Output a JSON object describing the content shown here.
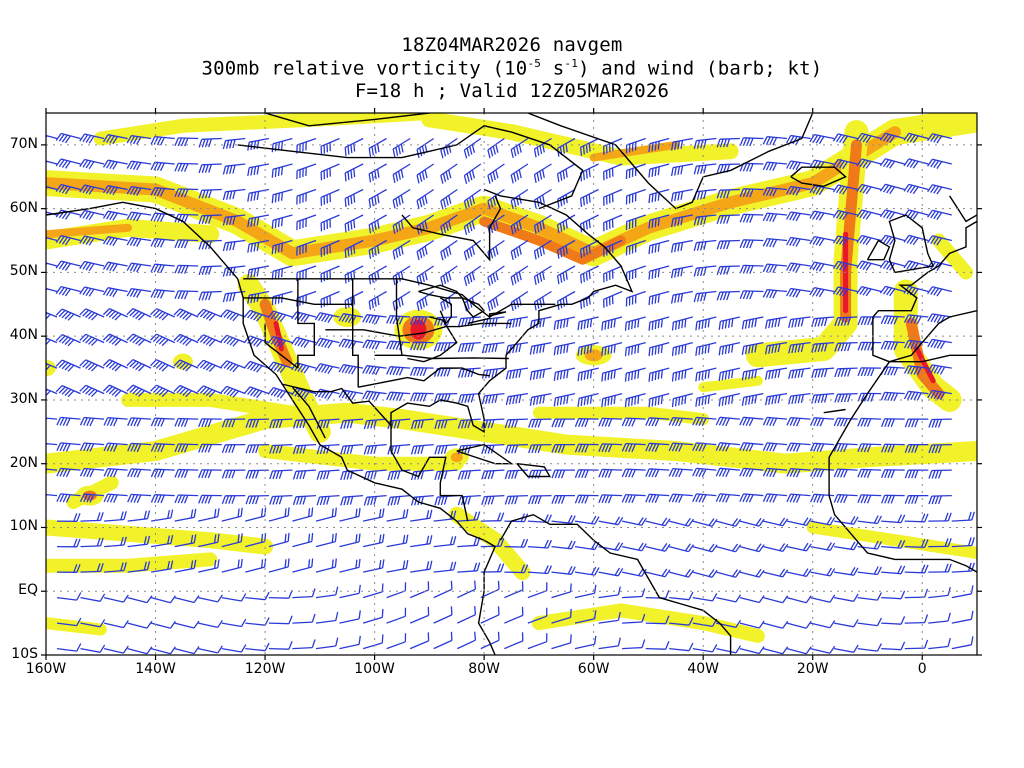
{
  "title": {
    "line1": "18Z04MAR2026 navgem",
    "line2_prefix": "300mb relative vorticity (10",
    "line2_exp1": "-5",
    "line2_mid": " s",
    "line2_exp2": "-1",
    "line2_suffix": ") and wind (barb; kt)",
    "line3": "F=18 h ; Valid 12Z05MAR2026"
  },
  "map": {
    "projection": "cylindrical equidistant",
    "lon_range": [
      -160,
      10
    ],
    "lat_range": [
      -10,
      75
    ],
    "gridlines": "dotted",
    "fill_colors": [
      "#f2f22a",
      "#f6d21a",
      "#f4a616",
      "#f07a18",
      "#ee4a22",
      "#e8182a"
    ],
    "barb_color": "#2a3ad8",
    "coastline_color": "#000000"
  },
  "lat_ticks": [
    "70N",
    "60N",
    "50N",
    "40N",
    "30N",
    "20N",
    "10N",
    "EQ",
    "10S"
  ],
  "lat_values": [
    70,
    60,
    50,
    40,
    30,
    20,
    10,
    0,
    -10
  ],
  "lon_ticks": [
    "160W",
    "140W",
    "120W",
    "100W",
    "80W",
    "60W",
    "40W",
    "20W",
    "0"
  ],
  "lon_values": [
    -160,
    -140,
    -120,
    -100,
    -80,
    -60,
    -40,
    -20,
    0
  ]
}
